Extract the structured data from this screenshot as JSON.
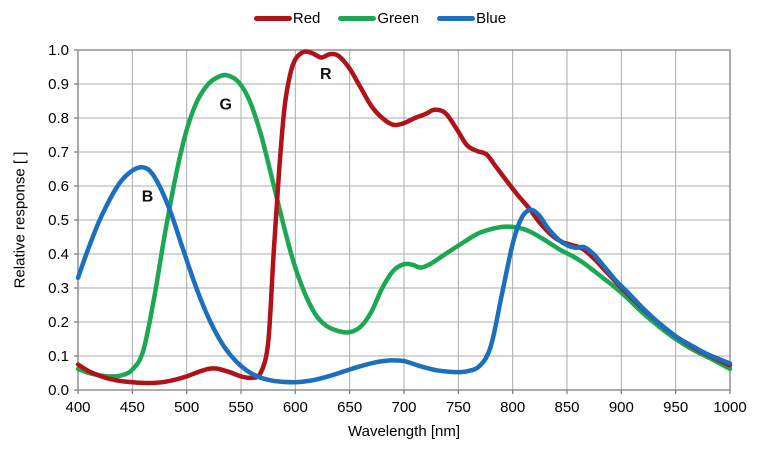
{
  "figure": {
    "background": "#FFFFFF",
    "text_color": "#000000"
  },
  "chart_data": {
    "type": "line",
    "title": "",
    "xlabel": "Wavelength [nm]",
    "ylabel": "Relative response [ ]",
    "xlim": [
      400,
      1000
    ],
    "ylim": [
      0.0,
      1.0
    ],
    "x_ticks": [
      400,
      450,
      500,
      550,
      600,
      650,
      700,
      750,
      800,
      850,
      900,
      950,
      1000
    ],
    "y_tick_labels": [
      "0.0",
      "0.1",
      "0.2",
      "0.3",
      "0.4",
      "0.5",
      "0.6",
      "0.7",
      "0.8",
      "0.9",
      "1.0"
    ],
    "grid": true,
    "grid_color": "#ABABAB",
    "border_color": "#808080",
    "legend_position": "top-center",
    "line_width": 4.5,
    "draw_order": [
      1,
      0,
      2
    ],
    "series": [
      {
        "name": "Red",
        "color": "#B11218",
        "annotation": {
          "label": "R",
          "x": 628,
          "y": 0.915
        },
        "points": [
          [
            400,
            0.075
          ],
          [
            410,
            0.055
          ],
          [
            420,
            0.042
          ],
          [
            430,
            0.032
          ],
          [
            440,
            0.026
          ],
          [
            450,
            0.023
          ],
          [
            460,
            0.021
          ],
          [
            470,
            0.021
          ],
          [
            480,
            0.024
          ],
          [
            490,
            0.031
          ],
          [
            500,
            0.04
          ],
          [
            510,
            0.052
          ],
          [
            520,
            0.062
          ],
          [
            528,
            0.063
          ],
          [
            540,
            0.052
          ],
          [
            550,
            0.04
          ],
          [
            560,
            0.036
          ],
          [
            568,
            0.05
          ],
          [
            575,
            0.14
          ],
          [
            580,
            0.4
          ],
          [
            585,
            0.64
          ],
          [
            590,
            0.83
          ],
          [
            595,
            0.925
          ],
          [
            600,
            0.972
          ],
          [
            608,
            0.995
          ],
          [
            616,
            0.99
          ],
          [
            624,
            0.978
          ],
          [
            632,
            0.988
          ],
          [
            640,
            0.982
          ],
          [
            650,
            0.945
          ],
          [
            660,
            0.89
          ],
          [
            670,
            0.835
          ],
          [
            680,
            0.8
          ],
          [
            690,
            0.78
          ],
          [
            700,
            0.785
          ],
          [
            710,
            0.8
          ],
          [
            720,
            0.812
          ],
          [
            728,
            0.824
          ],
          [
            738,
            0.815
          ],
          [
            748,
            0.77
          ],
          [
            758,
            0.72
          ],
          [
            768,
            0.702
          ],
          [
            776,
            0.693
          ],
          [
            785,
            0.655
          ],
          [
            795,
            0.613
          ],
          [
            805,
            0.572
          ],
          [
            815,
            0.535
          ],
          [
            825,
            0.492
          ],
          [
            835,
            0.458
          ],
          [
            845,
            0.436
          ],
          [
            855,
            0.426
          ],
          [
            865,
            0.414
          ],
          [
            875,
            0.386
          ],
          [
            885,
            0.352
          ],
          [
            895,
            0.318
          ],
          [
            905,
            0.285
          ],
          [
            920,
            0.238
          ],
          [
            935,
            0.196
          ],
          [
            950,
            0.158
          ],
          [
            965,
            0.128
          ],
          [
            980,
            0.102
          ],
          [
            1000,
            0.073
          ]
        ]
      },
      {
        "name": "Green",
        "color": "#1CA853",
        "annotation": {
          "label": "G",
          "x": 536,
          "y": 0.825
        },
        "points": [
          [
            400,
            0.062
          ],
          [
            410,
            0.05
          ],
          [
            420,
            0.043
          ],
          [
            430,
            0.04
          ],
          [
            440,
            0.043
          ],
          [
            450,
            0.06
          ],
          [
            460,
            0.115
          ],
          [
            470,
            0.27
          ],
          [
            480,
            0.46
          ],
          [
            490,
            0.63
          ],
          [
            500,
            0.765
          ],
          [
            510,
            0.852
          ],
          [
            520,
            0.9
          ],
          [
            530,
            0.922
          ],
          [
            538,
            0.925
          ],
          [
            548,
            0.905
          ],
          [
            558,
            0.85
          ],
          [
            568,
            0.755
          ],
          [
            578,
            0.63
          ],
          [
            588,
            0.5
          ],
          [
            598,
            0.38
          ],
          [
            608,
            0.29
          ],
          [
            618,
            0.225
          ],
          [
            628,
            0.19
          ],
          [
            640,
            0.173
          ],
          [
            650,
            0.17
          ],
          [
            660,
            0.186
          ],
          [
            670,
            0.23
          ],
          [
            680,
            0.3
          ],
          [
            690,
            0.35
          ],
          [
            700,
            0.37
          ],
          [
            708,
            0.368
          ],
          [
            716,
            0.36
          ],
          [
            726,
            0.374
          ],
          [
            740,
            0.404
          ],
          [
            755,
            0.435
          ],
          [
            768,
            0.46
          ],
          [
            780,
            0.473
          ],
          [
            792,
            0.48
          ],
          [
            804,
            0.478
          ],
          [
            815,
            0.467
          ],
          [
            825,
            0.45
          ],
          [
            835,
            0.43
          ],
          [
            845,
            0.41
          ],
          [
            855,
            0.394
          ],
          [
            865,
            0.374
          ],
          [
            875,
            0.35
          ],
          [
            885,
            0.325
          ],
          [
            895,
            0.3
          ],
          [
            905,
            0.272
          ],
          [
            920,
            0.226
          ],
          [
            935,
            0.186
          ],
          [
            950,
            0.15
          ],
          [
            965,
            0.12
          ],
          [
            980,
            0.096
          ],
          [
            1000,
            0.062
          ]
        ]
      },
      {
        "name": "Blue",
        "color": "#1B6FBF",
        "annotation": {
          "label": "B",
          "x": 464,
          "y": 0.555
        },
        "points": [
          [
            400,
            0.33
          ],
          [
            410,
            0.42
          ],
          [
            420,
            0.5
          ],
          [
            430,
            0.565
          ],
          [
            440,
            0.616
          ],
          [
            450,
            0.645
          ],
          [
            458,
            0.655
          ],
          [
            466,
            0.645
          ],
          [
            475,
            0.6
          ],
          [
            485,
            0.525
          ],
          [
            495,
            0.43
          ],
          [
            505,
            0.335
          ],
          [
            515,
            0.25
          ],
          [
            525,
            0.18
          ],
          [
            535,
            0.125
          ],
          [
            545,
            0.086
          ],
          [
            555,
            0.058
          ],
          [
            565,
            0.04
          ],
          [
            575,
            0.03
          ],
          [
            585,
            0.025
          ],
          [
            600,
            0.023
          ],
          [
            615,
            0.028
          ],
          [
            630,
            0.04
          ],
          [
            645,
            0.055
          ],
          [
            660,
            0.07
          ],
          [
            675,
            0.082
          ],
          [
            688,
            0.087
          ],
          [
            700,
            0.085
          ],
          [
            715,
            0.07
          ],
          [
            730,
            0.058
          ],
          [
            745,
            0.053
          ],
          [
            758,
            0.055
          ],
          [
            770,
            0.072
          ],
          [
            780,
            0.13
          ],
          [
            790,
            0.28
          ],
          [
            800,
            0.43
          ],
          [
            808,
            0.505
          ],
          [
            816,
            0.53
          ],
          [
            824,
            0.515
          ],
          [
            832,
            0.478
          ],
          [
            842,
            0.443
          ],
          [
            850,
            0.426
          ],
          [
            858,
            0.418
          ],
          [
            866,
            0.42
          ],
          [
            875,
            0.398
          ],
          [
            885,
            0.36
          ],
          [
            895,
            0.322
          ],
          [
            905,
            0.29
          ],
          [
            920,
            0.24
          ],
          [
            935,
            0.196
          ],
          [
            950,
            0.158
          ],
          [
            965,
            0.13
          ],
          [
            980,
            0.104
          ],
          [
            1000,
            0.078
          ]
        ]
      }
    ]
  }
}
